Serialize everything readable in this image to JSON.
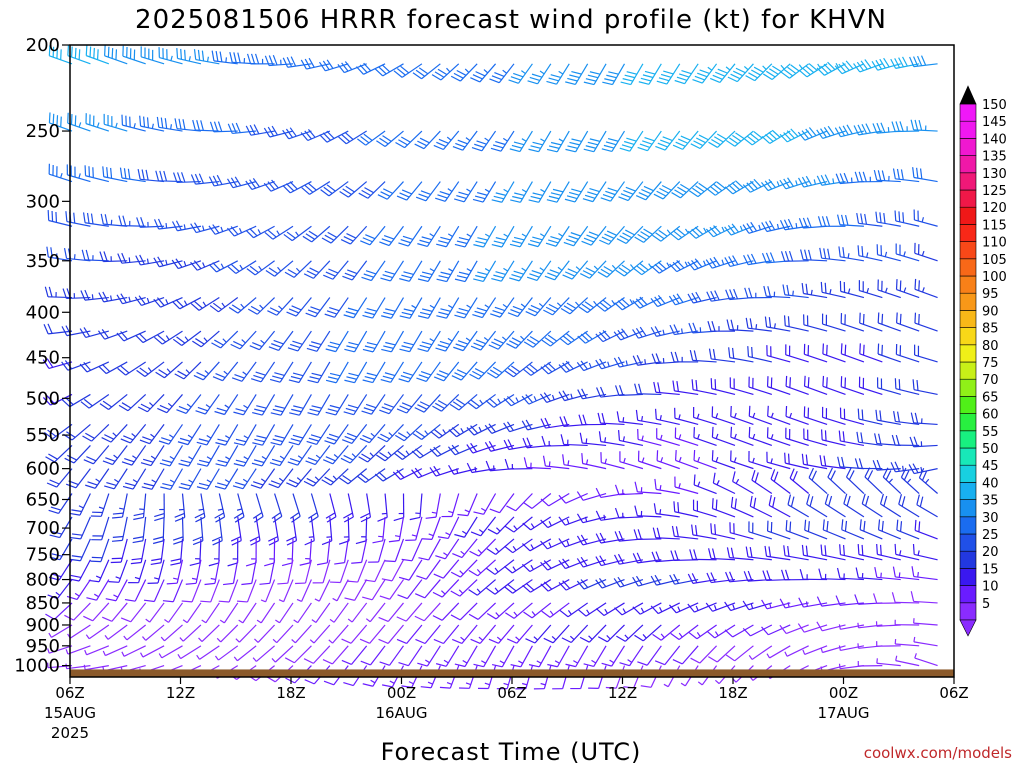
{
  "chart_data": {
    "type": "wind-barb-time-height",
    "title": "2025081506 HRRR forecast wind profile (kt) for KHVN",
    "xlabel": "Forecast Time (UTC)",
    "ylabel": "",
    "y_axis": {
      "scale": "log-pressure",
      "ylim": [
        1030,
        200
      ],
      "ticks": [
        200,
        250,
        300,
        350,
        400,
        450,
        500,
        550,
        600,
        650,
        700,
        750,
        800,
        850,
        900,
        950,
        1000
      ]
    },
    "x_axis": {
      "range_hours": [
        0,
        48
      ],
      "ticks": [
        {
          "hour": 0,
          "label": "06Z",
          "sub1": "15AUG",
          "sub2": "2025"
        },
        {
          "hour": 6,
          "label": "12Z",
          "sub1": "",
          "sub2": ""
        },
        {
          "hour": 12,
          "label": "18Z",
          "sub1": "",
          "sub2": ""
        },
        {
          "hour": 18,
          "label": "00Z",
          "sub1": "16AUG",
          "sub2": ""
        },
        {
          "hour": 24,
          "label": "06Z",
          "sub1": "",
          "sub2": ""
        },
        {
          "hour": 30,
          "label": "12Z",
          "sub1": "",
          "sub2": ""
        },
        {
          "hour": 36,
          "label": "18Z",
          "sub1": "",
          "sub2": ""
        },
        {
          "hour": 42,
          "label": "00Z",
          "sub1": "17AUG",
          "sub2": ""
        },
        {
          "hour": 48,
          "label": "06Z",
          "sub1": "",
          "sub2": ""
        }
      ]
    },
    "colorbar": {
      "unit": "kt",
      "levels": [
        5,
        10,
        15,
        20,
        25,
        30,
        35,
        40,
        45,
        50,
        55,
        60,
        65,
        70,
        75,
        80,
        85,
        90,
        95,
        100,
        105,
        110,
        115,
        120,
        125,
        130,
        135,
        140,
        145,
        150
      ],
      "colors": [
        "#8a2cff",
        "#6a1cff",
        "#3a18f0",
        "#2238e0",
        "#2050e8",
        "#1a6cf0",
        "#1890f0",
        "#18b0f0",
        "#18d0e0",
        "#18e8b8",
        "#18f080",
        "#28f040",
        "#50f018",
        "#90f018",
        "#c8f018",
        "#f0f018",
        "#f8d818",
        "#f8b818",
        "#f89818",
        "#f88018",
        "#f86818",
        "#f84818",
        "#f82818",
        "#f01818",
        "#f01848",
        "#f01878",
        "#f018a8",
        "#f018d0",
        "#f018f0",
        "#f018f8"
      ],
      "min_arrow_color": "#8a2cff",
      "max_arrow_color": "#000000"
    },
    "terrain_color": "#8b5a2b",
    "wind_field": {
      "note_levels": [
        210,
        250,
        285,
        320,
        350,
        385,
        420,
        455,
        495,
        535,
        565,
        600,
        640,
        680,
        720,
        760,
        800,
        850,
        900,
        950,
        1000
      ],
      "max_speed_kt": 45,
      "min_speed_kt": 5
    }
  },
  "credit": "coolwx.com/models"
}
